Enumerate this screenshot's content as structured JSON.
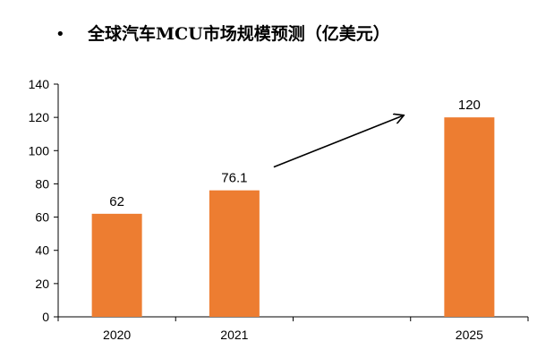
{
  "header": {
    "bullet": "•",
    "title": "全球汽车MCU市场规模预测（亿美元）"
  },
  "colors": {
    "bar": "#ED7D31",
    "axis": "#000000",
    "arrow": "#000000"
  },
  "chart_data": {
    "type": "bar",
    "title": "全球汽车MCU市场规模预测（亿美元）",
    "categories": [
      "2020",
      "2021",
      "",
      "2025"
    ],
    "values": [
      62,
      76.1,
      null,
      120
    ],
    "data_labels": [
      "62",
      "76.1",
      "",
      "120"
    ],
    "ylim": [
      0,
      140
    ],
    "yticks": [
      0,
      20,
      40,
      60,
      80,
      100,
      120,
      140
    ],
    "xlabel": "",
    "ylabel": "",
    "grid": false,
    "legend": "none",
    "annotations": [
      {
        "type": "arrow",
        "description": "upward arrow from 2021 bar toward 2025 bar"
      }
    ]
  }
}
